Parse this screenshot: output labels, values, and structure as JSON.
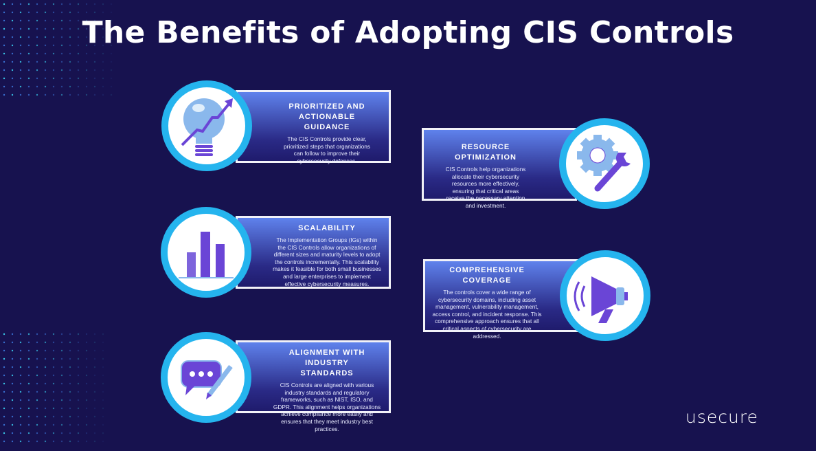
{
  "title": "The Benefits of Adopting CIS Controls",
  "colors": {
    "background": "#17124f",
    "ring": "#25b4ee",
    "icon_purple": "#6a45d6",
    "icon_light": "#8ab8ec"
  },
  "benefits": [
    {
      "title": "PRIORITIZED AND ACTIONABLE GUIDANCE",
      "text": "The CIS Controls provide clear, prioritized steps that organizations can follow to improve their cybersecurity defenses.",
      "icon": "lightbulb-growth-icon"
    },
    {
      "title": "RESOURCE OPTIMIZATION",
      "text": "CIS Controls help organizations allocate their cybersecurity resources more effectively, ensuring that critical areas receive the necessary attention and investment.",
      "icon": "gear-wrench-icon"
    },
    {
      "title": "SCALABILITY",
      "text": "The Implementation Groups (IGs) within the CIS Controls allow organizations of different sizes and maturity levels to adopt the controls incrementally. This scalability makes it feasible for both small businesses and large enterprises to implement effective cybersecurity measures.",
      "icon": "bar-chart-icon"
    },
    {
      "title": "COMPREHENSIVE COVERAGE",
      "text": "The controls cover a wide range of cybersecurity domains, including asset management, vulnerability management, access control, and incident response. This comprehensive approach ensures that all critical aspects of cybersecurity are addressed.",
      "icon": "megaphone-icon"
    },
    {
      "title": "ALIGNMENT WITH INDUSTRY STANDARDS",
      "text": "CIS Controls are aligned with various industry standards and regulatory frameworks, such as NIST, ISO, and GDPR. This alignment helps organizations achieve compliance more easily and ensures that they meet industry best practices.",
      "icon": "chat-pencil-icon"
    }
  ],
  "logo": "usecure"
}
